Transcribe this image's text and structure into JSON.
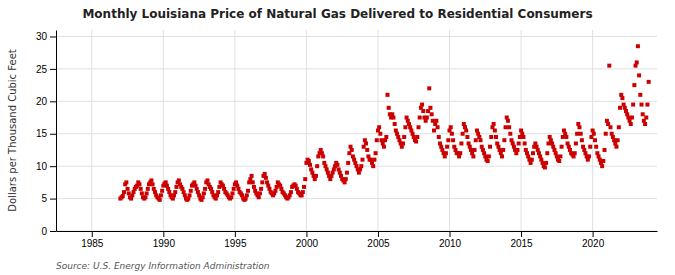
{
  "chart_data": {
    "type": "scatter",
    "title": "Monthly Louisiana Price of Natural Gas Delivered to Residential Consumers",
    "ylabel": "Dollars per Thousand Cubic Feet",
    "source": "Source: U.S. Energy Information Administration",
    "color": "#cc0000",
    "marker": "square",
    "grid": true,
    "xlim": [
      1982.5,
      2024.5
    ],
    "ylim": [
      0,
      31
    ],
    "xticks": [
      1985,
      1990,
      1995,
      2000,
      2005,
      2010,
      2015,
      2020
    ],
    "yticks": [
      0,
      5,
      10,
      15,
      20,
      25,
      30
    ],
    "x": [
      1987.0,
      1987.083,
      1987.167,
      1987.25,
      1987.333,
      1987.417,
      1987.5,
      1987.583,
      1987.667,
      1987.75,
      1987.833,
      1987.917,
      1988.0,
      1988.083,
      1988.167,
      1988.25,
      1988.333,
      1988.417,
      1988.5,
      1988.583,
      1988.667,
      1988.75,
      1988.833,
      1988.917,
      1989.0,
      1989.083,
      1989.167,
      1989.25,
      1989.333,
      1989.417,
      1989.5,
      1989.583,
      1989.667,
      1989.75,
      1989.833,
      1989.917,
      1990.0,
      1990.083,
      1990.167,
      1990.25,
      1990.333,
      1990.417,
      1990.5,
      1990.583,
      1990.667,
      1990.75,
      1990.833,
      1990.917,
      1991.0,
      1991.083,
      1991.167,
      1991.25,
      1991.333,
      1991.417,
      1991.5,
      1991.583,
      1991.667,
      1991.75,
      1991.833,
      1991.917,
      1992.0,
      1992.083,
      1992.167,
      1992.25,
      1992.333,
      1992.417,
      1992.5,
      1992.583,
      1992.667,
      1992.75,
      1992.833,
      1992.917,
      1993.0,
      1993.083,
      1993.167,
      1993.25,
      1993.333,
      1993.417,
      1993.5,
      1993.583,
      1993.667,
      1993.75,
      1993.833,
      1993.917,
      1994.0,
      1994.083,
      1994.167,
      1994.25,
      1994.333,
      1994.417,
      1994.5,
      1994.583,
      1994.667,
      1994.75,
      1994.833,
      1994.917,
      1995.0,
      1995.083,
      1995.167,
      1995.25,
      1995.333,
      1995.417,
      1995.5,
      1995.583,
      1995.667,
      1995.75,
      1995.833,
      1995.917,
      1996.0,
      1996.083,
      1996.167,
      1996.25,
      1996.333,
      1996.417,
      1996.5,
      1996.583,
      1996.667,
      1996.75,
      1996.833,
      1996.917,
      1997.0,
      1997.083,
      1997.167,
      1997.25,
      1997.333,
      1997.417,
      1997.5,
      1997.583,
      1997.667,
      1997.75,
      1997.833,
      1997.917,
      1998.0,
      1998.083,
      1998.167,
      1998.25,
      1998.333,
      1998.417,
      1998.5,
      1998.583,
      1998.667,
      1998.75,
      1998.833,
      1998.917,
      1999.0,
      1999.083,
      1999.167,
      1999.25,
      1999.333,
      1999.417,
      1999.5,
      1999.583,
      1999.667,
      1999.75,
      1999.833,
      1999.917,
      2000.0,
      2000.083,
      2000.167,
      2000.25,
      2000.333,
      2000.417,
      2000.5,
      2000.583,
      2000.667,
      2000.75,
      2000.833,
      2000.917,
      2001.0,
      2001.083,
      2001.167,
      2001.25,
      2001.333,
      2001.417,
      2001.5,
      2001.583,
      2001.667,
      2001.75,
      2001.833,
      2001.917,
      2002.0,
      2002.083,
      2002.167,
      2002.25,
      2002.333,
      2002.417,
      2002.5,
      2002.583,
      2002.667,
      2002.75,
      2002.833,
      2002.917,
      2003.0,
      2003.083,
      2003.167,
      2003.25,
      2003.333,
      2003.417,
      2003.5,
      2003.583,
      2003.667,
      2003.75,
      2003.833,
      2003.917,
      2004.0,
      2004.083,
      2004.167,
      2004.25,
      2004.333,
      2004.417,
      2004.5,
      2004.583,
      2004.667,
      2004.75,
      2004.833,
      2004.917,
      2005.0,
      2005.083,
      2005.167,
      2005.25,
      2005.333,
      2005.417,
      2005.5,
      2005.583,
      2005.667,
      2005.75,
      2005.833,
      2005.917,
      2006.0,
      2006.083,
      2006.167,
      2006.25,
      2006.333,
      2006.417,
      2006.5,
      2006.583,
      2006.667,
      2006.75,
      2006.833,
      2006.917,
      2007.0,
      2007.083,
      2007.167,
      2007.25,
      2007.333,
      2007.417,
      2007.5,
      2007.583,
      2007.667,
      2007.75,
      2007.833,
      2007.917,
      2008.0,
      2008.083,
      2008.167,
      2008.25,
      2008.333,
      2008.417,
      2008.5,
      2008.583,
      2008.667,
      2008.75,
      2008.833,
      2008.917,
      2009.0,
      2009.083,
      2009.167,
      2009.25,
      2009.333,
      2009.417,
      2009.5,
      2009.583,
      2009.667,
      2009.75,
      2009.833,
      2009.917,
      2010.0,
      2010.083,
      2010.167,
      2010.25,
      2010.333,
      2010.417,
      2010.5,
      2010.583,
      2010.667,
      2010.75,
      2010.833,
      2010.917,
      2011.0,
      2011.083,
      2011.167,
      2011.25,
      2011.333,
      2011.417,
      2011.5,
      2011.583,
      2011.667,
      2011.75,
      2011.833,
      2011.917,
      2012.0,
      2012.083,
      2012.167,
      2012.25,
      2012.333,
      2012.417,
      2012.5,
      2012.583,
      2012.667,
      2012.75,
      2012.833,
      2012.917,
      2013.0,
      2013.083,
      2013.167,
      2013.25,
      2013.333,
      2013.417,
      2013.5,
      2013.583,
      2013.667,
      2013.75,
      2013.833,
      2013.917,
      2014.0,
      2014.083,
      2014.167,
      2014.25,
      2014.333,
      2014.417,
      2014.5,
      2014.583,
      2014.667,
      2014.75,
      2014.833,
      2014.917,
      2015.0,
      2015.083,
      2015.167,
      2015.25,
      2015.333,
      2015.417,
      2015.5,
      2015.583,
      2015.667,
      2015.75,
      2015.833,
      2015.917,
      2016.0,
      2016.083,
      2016.167,
      2016.25,
      2016.333,
      2016.417,
      2016.5,
      2016.583,
      2016.667,
      2016.75,
      2016.833,
      2016.917,
      2017.0,
      2017.083,
      2017.167,
      2017.25,
      2017.333,
      2017.417,
      2017.5,
      2017.583,
      2017.667,
      2017.75,
      2017.833,
      2017.917,
      2018.0,
      2018.083,
      2018.167,
      2018.25,
      2018.333,
      2018.417,
      2018.5,
      2018.583,
      2018.667,
      2018.75,
      2018.833,
      2018.917,
      2019.0,
      2019.083,
      2019.167,
      2019.25,
      2019.333,
      2019.417,
      2019.5,
      2019.583,
      2019.667,
      2019.75,
      2019.833,
      2019.917,
      2020.0,
      2020.083,
      2020.167,
      2020.25,
      2020.333,
      2020.417,
      2020.5,
      2020.583,
      2020.667,
      2020.75,
      2020.833,
      2020.917,
      2021.0,
      2021.083,
      2021.167,
      2021.25,
      2021.333,
      2021.417,
      2021.5,
      2021.583,
      2021.667,
      2021.75,
      2021.833,
      2021.917,
      2022.0,
      2022.083,
      2022.167,
      2022.25,
      2022.333,
      2022.417,
      2022.5,
      2022.583,
      2022.667,
      2022.75,
      2022.833,
      2022.917,
      2023.0,
      2023.083,
      2023.167,
      2023.25,
      2023.333,
      2023.417,
      2023.5,
      2023.583,
      2023.667,
      2023.75,
      2023.833,
      2023.917
    ],
    "values": [
      5.0,
      5.2,
      5.4,
      6.0,
      7.2,
      7.5,
      6.5,
      5.8,
      5.2,
      5.0,
      5.5,
      6.0,
      6.5,
      6.8,
      7.0,
      7.5,
      7.2,
      6.5,
      5.8,
      5.2,
      5.0,
      5.2,
      5.8,
      6.5,
      7.2,
      7.5,
      7.8,
      7.2,
      6.5,
      6.0,
      5.5,
      5.2,
      5.0,
      4.8,
      5.5,
      6.2,
      7.0,
      7.3,
      7.5,
      7.0,
      6.5,
      6.0,
      5.5,
      5.2,
      5.0,
      5.5,
      6.0,
      6.8,
      7.5,
      7.8,
      7.2,
      6.8,
      6.5,
      6.0,
      5.5,
      5.0,
      4.8,
      5.0,
      5.5,
      6.2,
      7.0,
      7.2,
      7.5,
      7.0,
      6.5,
      6.0,
      5.5,
      5.0,
      4.8,
      5.2,
      5.8,
      6.5,
      7.5,
      7.8,
      7.2,
      6.8,
      6.5,
      6.0,
      5.5,
      5.2,
      5.0,
      5.5,
      6.0,
      6.8,
      7.5,
      7.2,
      7.0,
      6.5,
      6.0,
      5.8,
      5.5,
      5.2,
      5.0,
      5.2,
      5.8,
      6.5,
      7.2,
      7.5,
      7.0,
      6.5,
      6.0,
      5.8,
      5.5,
      5.0,
      4.8,
      5.0,
      5.5,
      6.2,
      7.5,
      8.0,
      8.5,
      7.5,
      6.8,
      6.2,
      5.8,
      5.5,
      5.2,
      5.8,
      6.5,
      7.5,
      8.5,
      8.8,
      8.2,
      7.5,
      7.0,
      6.5,
      6.0,
      5.8,
      5.5,
      5.8,
      6.2,
      6.8,
      7.5,
      7.2,
      7.0,
      6.5,
      6.0,
      5.8,
      5.5,
      5.2,
      5.0,
      5.2,
      5.5,
      6.0,
      6.8,
      7.0,
      7.2,
      7.0,
      6.5,
      6.0,
      5.8,
      5.5,
      5.5,
      6.0,
      6.8,
      8.0,
      10.5,
      11.0,
      10.8,
      10.2,
      9.5,
      9.0,
      8.5,
      8.0,
      8.5,
      10.0,
      11.5,
      12.0,
      12.5,
      12.0,
      11.5,
      10.5,
      10.0,
      9.5,
      9.0,
      8.5,
      8.0,
      8.5,
      9.0,
      9.5,
      10.0,
      10.5,
      10.2,
      9.5,
      9.0,
      8.5,
      8.0,
      7.8,
      7.5,
      8.0,
      9.0,
      10.5,
      12.0,
      13.0,
      12.5,
      11.5,
      11.0,
      10.5,
      10.0,
      9.5,
      9.0,
      9.5,
      10.0,
      11.0,
      13.0,
      14.0,
      13.5,
      12.5,
      11.5,
      11.0,
      11.0,
      10.5,
      10.0,
      11.0,
      12.0,
      14.0,
      15.5,
      16.0,
      15.0,
      14.0,
      13.5,
      13.0,
      14.0,
      14.5,
      21.0,
      19.0,
      18.0,
      17.5,
      18.0,
      17.5,
      16.5,
      15.5,
      15.0,
      14.5,
      14.0,
      13.5,
      13.0,
      13.5,
      14.5,
      16.0,
      17.5,
      17.0,
      16.5,
      16.0,
      15.5,
      15.0,
      14.5,
      14.0,
      13.8,
      14.5,
      16.0,
      17.5,
      19.0,
      19.5,
      18.5,
      17.5,
      17.0,
      17.5,
      18.5,
      22.0,
      19.0,
      18.0,
      17.0,
      15.5,
      16.5,
      17.0,
      16.0,
      14.5,
      13.5,
      13.0,
      12.5,
      12.0,
      11.5,
      12.0,
      13.0,
      14.0,
      15.5,
      16.0,
      15.0,
      14.0,
      13.0,
      12.5,
      12.0,
      12.0,
      11.5,
      12.0,
      13.5,
      15.0,
      16.5,
      16.0,
      15.5,
      14.5,
      13.5,
      13.0,
      12.5,
      12.0,
      11.5,
      12.5,
      14.0,
      15.5,
      15.0,
      14.5,
      14.0,
      13.0,
      12.5,
      12.0,
      11.5,
      11.0,
      10.8,
      11.5,
      13.0,
      14.5,
      16.0,
      16.5,
      15.5,
      14.5,
      13.5,
      13.0,
      12.5,
      12.0,
      11.5,
      12.5,
      14.0,
      16.0,
      17.5,
      17.0,
      16.0,
      15.0,
      14.0,
      13.5,
      13.0,
      12.5,
      12.0,
      12.5,
      13.5,
      14.5,
      15.5,
      15.0,
      14.5,
      13.5,
      12.5,
      12.0,
      11.5,
      11.0,
      10.5,
      11.0,
      12.0,
      13.0,
      13.5,
      13.0,
      12.5,
      12.0,
      11.5,
      11.0,
      10.5,
      10.0,
      9.8,
      10.5,
      12.0,
      13.5,
      14.5,
      14.0,
      13.5,
      13.0,
      12.5,
      12.0,
      11.5,
      11.0,
      10.8,
      11.5,
      13.0,
      14.5,
      15.5,
      15.0,
      14.5,
      13.5,
      13.0,
      12.5,
      12.0,
      11.8,
      11.5,
      12.0,
      13.5,
      15.0,
      16.5,
      16.0,
      15.0,
      14.0,
      13.0,
      12.5,
      12.0,
      11.5,
      11.0,
      11.5,
      13.0,
      14.5,
      15.5,
      15.0,
      14.0,
      13.0,
      12.0,
      11.5,
      11.0,
      10.5,
      10.0,
      10.8,
      12.5,
      15.0,
      17.0,
      16.5,
      25.5,
      16.0,
      15.0,
      14.5,
      14.0,
      13.5,
      13.0,
      14.0,
      16.0,
      19.0,
      21.0,
      20.5,
      19.5,
      19.0,
      18.5,
      18.0,
      17.5,
      17.0,
      16.5,
      17.5,
      19.5,
      22.5,
      25.5,
      26.0,
      28.5,
      24.0,
      21.0,
      19.5,
      18.0,
      17.0,
      16.5,
      17.5,
      19.5,
      23.0
    ]
  }
}
